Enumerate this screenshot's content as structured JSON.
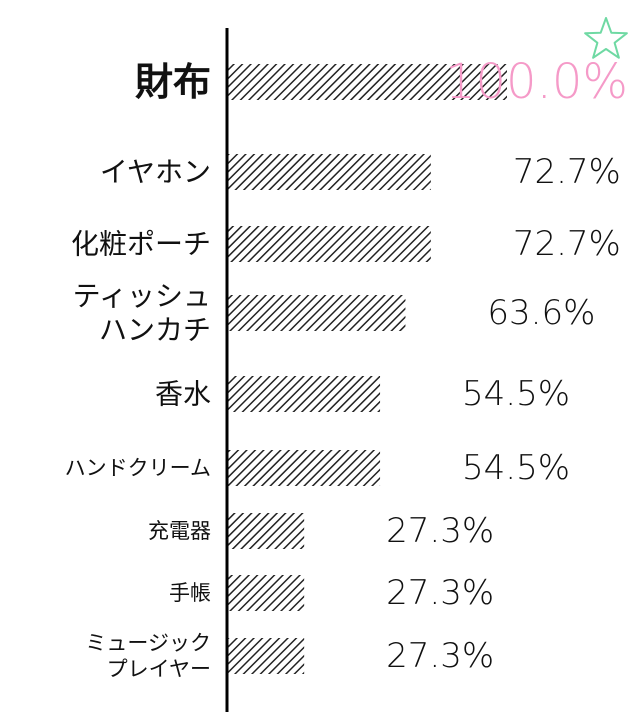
{
  "chart_data": {
    "type": "bar",
    "orientation": "horizontal",
    "categories": [
      [
        "財布"
      ],
      [
        "イヤホン"
      ],
      [
        "化粧ポーチ"
      ],
      [
        "ティッシュ",
        "ハンカチ"
      ],
      [
        "香水"
      ],
      [
        "ハンドクリーム"
      ],
      [
        "充電器"
      ],
      [
        "手帳"
      ],
      [
        "ミュージック",
        "プレイヤー"
      ]
    ],
    "values": [
      100.0,
      72.7,
      72.7,
      63.6,
      54.5,
      54.5,
      27.3,
      27.3,
      27.3
    ],
    "value_labels": [
      "100.0%",
      "72.7%",
      "72.7%",
      "63.6%",
      "54.5%",
      "54.5%",
      "27.3%",
      "27.3%",
      "27.3%"
    ],
    "xlim": [
      0,
      100
    ],
    "grid": false,
    "colors": {
      "bar_stripe": "#222222",
      "axis": "#000000",
      "highlight": "#f59ac8",
      "star": "#6fd9a3",
      "text": "#111111"
    },
    "icons": [
      "star-icon"
    ]
  }
}
